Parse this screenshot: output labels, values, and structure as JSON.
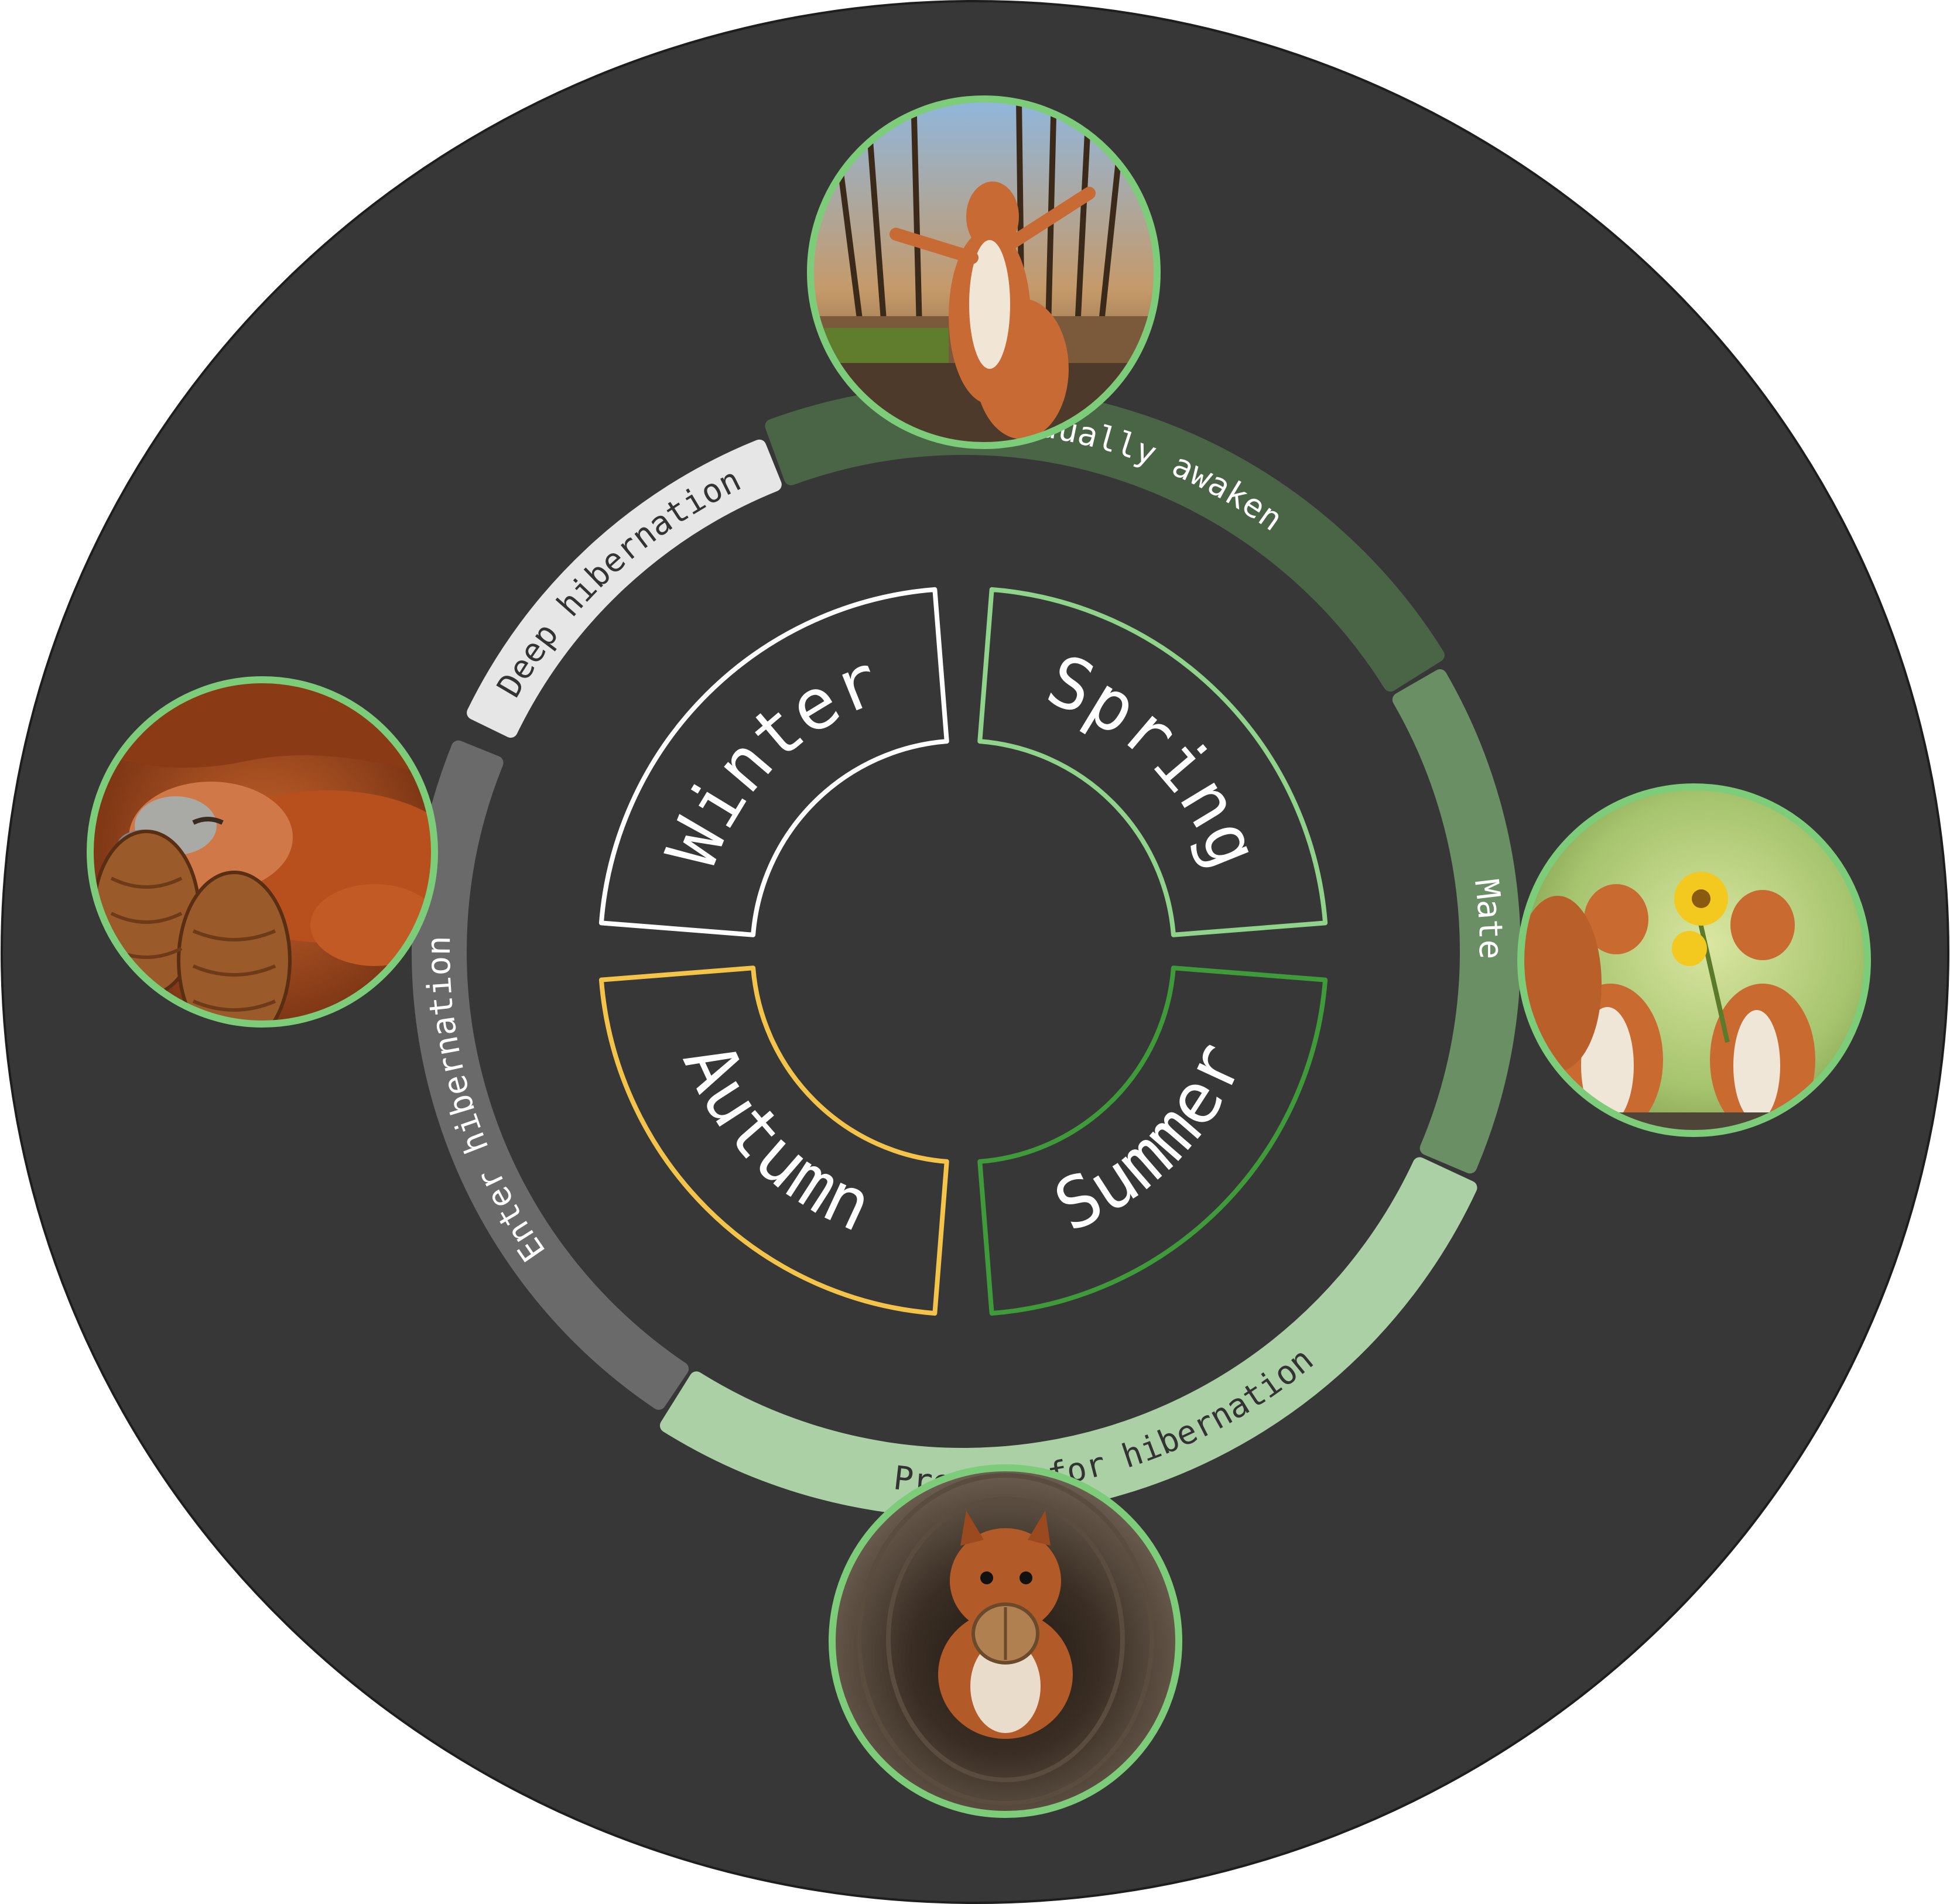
{
  "colors": {
    "background_disc": "#373737",
    "photo_border": "#7ccc79",
    "winter": "#ffffff",
    "spring": "#90d38b",
    "summer": "#3f9a3a",
    "autumn": "#f4c34a"
  },
  "seasons": [
    {
      "id": "winter",
      "label": "Winter",
      "color": "#ffffff"
    },
    {
      "id": "spring",
      "label": "Spring",
      "color": "#90d38b"
    },
    {
      "id": "summer",
      "label": "Summer",
      "color": "#3f9a3a"
    },
    {
      "id": "autumn",
      "label": "Autumn",
      "color": "#f4c34a"
    }
  ],
  "activities": [
    {
      "id": "deep-hibernation",
      "label": "Deep hibernation",
      "fill": "#e6e6e6",
      "text_color": "#333333"
    },
    {
      "id": "gradually-awaken",
      "label": "Gradually awaken",
      "fill": "#4a6446",
      "text_color": "#ffffff"
    },
    {
      "id": "mate",
      "label": "Mate",
      "fill": "#6a8f64",
      "text_color": "#ffffff"
    },
    {
      "id": "prepare-for-hibernation",
      "label": "Prepare for hibernation",
      "fill": "#acd0a6",
      "text_color": "#333333"
    },
    {
      "id": "enter-hibernation",
      "label": "Enter hibernation",
      "fill": "#6a6a6a",
      "text_color": "#ffffff"
    }
  ],
  "photos": [
    {
      "id": "photo-winter-sleeping-squirrel",
      "icon": "sleeping-squirrel"
    },
    {
      "id": "photo-spring-stretching-squirrel",
      "icon": "stretching-squirrel-forest"
    },
    {
      "id": "photo-summer-two-squirrels-flower",
      "icon": "two-squirrels-sunflower"
    },
    {
      "id": "photo-autumn-squirrel-walnut",
      "icon": "squirrel-in-tree-hole-walnut"
    }
  ]
}
